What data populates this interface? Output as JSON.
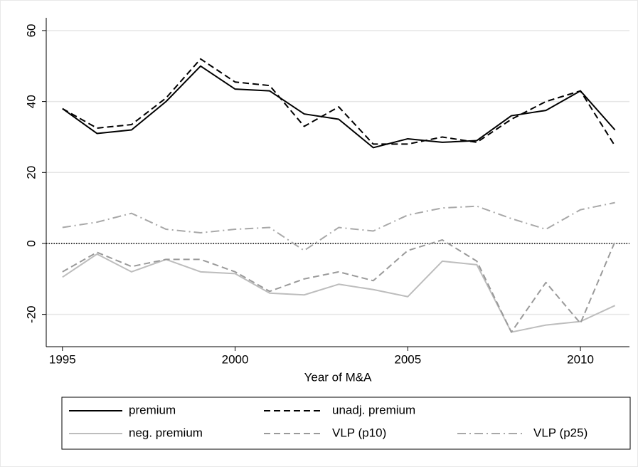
{
  "chart_data": {
    "type": "line",
    "x_label": "Year of M&A",
    "x": [
      1995,
      1996,
      1997,
      1998,
      1999,
      2000,
      2001,
      2002,
      2003,
      2004,
      2005,
      2006,
      2007,
      2008,
      2009,
      2010,
      2011
    ],
    "xlim": [
      1994.53,
      2011.42
    ],
    "xticks": [
      1995,
      2000,
      2005,
      2010
    ],
    "ylim": [
      -29.1,
      63.6
    ],
    "yticks": [
      -20,
      0,
      20,
      40,
      60
    ],
    "grid": true,
    "yline": 0,
    "series": [
      {
        "name": "premium",
        "color": "#000000",
        "style": "solid",
        "values": [
          38,
          31,
          32,
          40,
          50,
          43.5,
          43,
          36.5,
          35,
          27,
          29.5,
          28.5,
          29,
          36,
          37.5,
          43,
          32
        ]
      },
      {
        "name": "unadj. premium",
        "color": "#000000",
        "style": "dash",
        "values": [
          38,
          32.5,
          33.5,
          41,
          52,
          45.5,
          44.5,
          33,
          38.5,
          28,
          28,
          30,
          28.5,
          35,
          40,
          43,
          27.5
        ]
      },
      {
        "name": "neg. premium",
        "color": "#bdbdbd",
        "style": "solid",
        "values": [
          -9.5,
          -3,
          -8,
          -4.5,
          -8,
          -8.5,
          -14,
          -14.5,
          -11.5,
          -13,
          -15,
          -5,
          -6,
          -25,
          -23,
          -22,
          -17.5
        ]
      },
      {
        "name": "VLP (p10)",
        "color": "#9a9a9a",
        "style": "dash",
        "values": [
          -8,
          -2.5,
          -6.5,
          -4.5,
          -4.5,
          -8,
          -13.5,
          -10,
          -8,
          -10.5,
          -2,
          1,
          -5,
          -25,
          -11,
          -22.5,
          0.5
        ]
      },
      {
        "name": "VLP (p25)",
        "color": "#a8a8a8",
        "style": "dashdot",
        "values": [
          4.5,
          6,
          8.5,
          4,
          3,
          4,
          4.5,
          -2,
          4.5,
          3.5,
          8,
          10,
          10.5,
          7,
          4,
          9.5,
          11.5
        ]
      }
    ]
  }
}
